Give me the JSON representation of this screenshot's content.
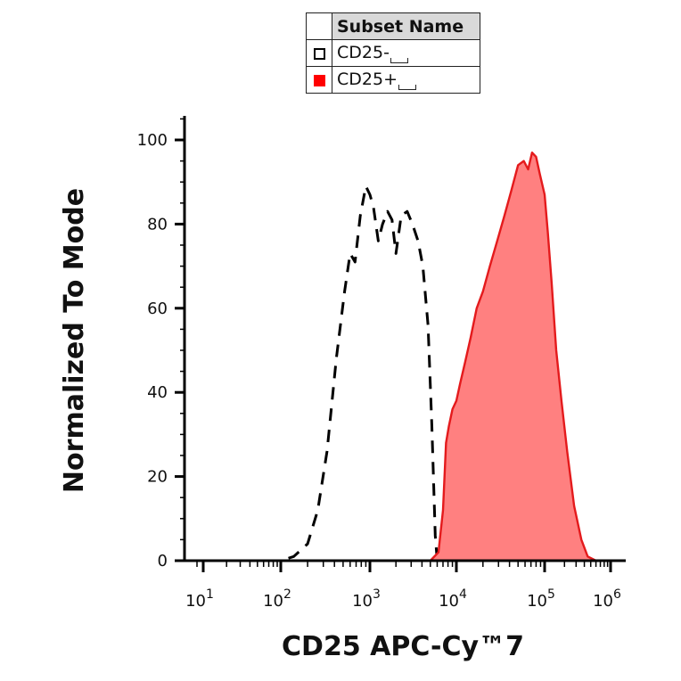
{
  "legend": {
    "header": "Subset Name",
    "items": [
      {
        "label": "CD25-",
        "color": "#000000",
        "fill": "none",
        "style": "dashed"
      },
      {
        "label": "CD25+",
        "color": "#e41a1c",
        "fill": "#ff8080",
        "style": "solid"
      }
    ]
  },
  "chart_data": {
    "type": "area",
    "xlabel": "CD25 APC-Cy™7",
    "ylabel": "Normalized To Mode",
    "xscale": "biexponential",
    "ylim": [
      0,
      100
    ],
    "x_ticks": [
      {
        "base": "10",
        "exp": "1",
        "value": 10
      },
      {
        "base": "10",
        "exp": "2",
        "value": 100
      },
      {
        "base": "10",
        "exp": "3",
        "value": 1000
      },
      {
        "base": "10",
        "exp": "4",
        "value": 10000
      },
      {
        "base": "10",
        "exp": "5",
        "value": 100000
      },
      {
        "base": "10",
        "exp": "6",
        "value": 1000000
      }
    ],
    "y_ticks": [
      "0",
      "20",
      "40",
      "60",
      "80",
      "100"
    ],
    "series": [
      {
        "name": "CD25-",
        "x": [
          10,
          50,
          100,
          140,
          200,
          260,
          330,
          420,
          520,
          600,
          680,
          780,
          900,
          1000,
          1100,
          1250,
          1400,
          1600,
          1800,
          2000,
          2300,
          2700,
          3100,
          3600,
          4100,
          4700,
          5200,
          5700,
          6000,
          6500,
          10000,
          100000,
          1000000
        ],
        "y": [
          0,
          0,
          0,
          1,
          4,
          12,
          26,
          48,
          64,
          73,
          71,
          82,
          89,
          87,
          84,
          76,
          80,
          83,
          81,
          73,
          82,
          83,
          80,
          76,
          70,
          56,
          32,
          6,
          0,
          0,
          0,
          0,
          0
        ]
      },
      {
        "name": "CD25+",
        "x": [
          10,
          1000,
          5000,
          6200,
          7000,
          7600,
          8200,
          9000,
          10000,
          11000,
          12500,
          14500,
          17000,
          20000,
          24000,
          29000,
          35000,
          42000,
          50000,
          58000,
          65000,
          72000,
          80000,
          88000,
          100000,
          112000,
          128000,
          150000,
          180000,
          220000,
          280000,
          360000,
          450000,
          600000,
          800000
        ],
        "y": [
          0,
          0,
          0,
          2,
          12,
          28,
          32,
          36,
          38,
          42,
          47,
          53,
          60,
          64,
          70,
          76,
          82,
          88,
          94,
          95,
          93,
          97,
          96,
          92,
          87,
          78,
          66,
          50,
          38,
          26,
          13,
          5,
          1,
          0,
          0
        ]
      }
    ]
  }
}
